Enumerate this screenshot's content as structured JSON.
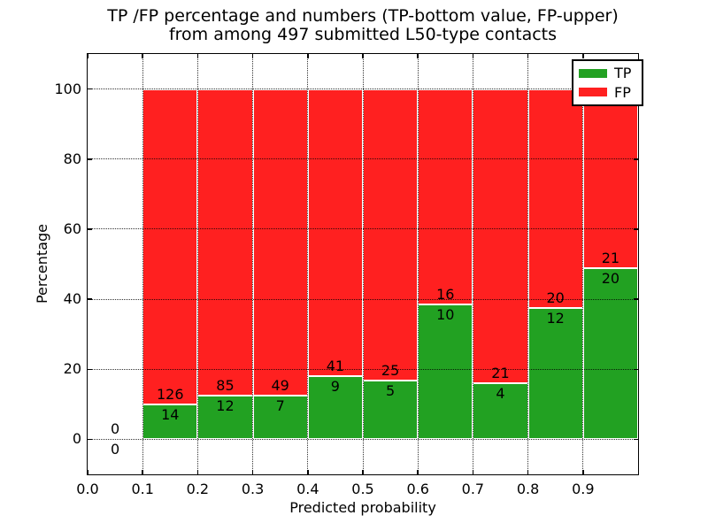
{
  "figure": {
    "background": "#ffffff"
  },
  "chart_data": {
    "type": "bar",
    "stacked": true,
    "title_lines": [
      "TP /FP percentage and numbers (TP-bottom value, FP-upper)",
      "from among 497 submitted L50-type contacts"
    ],
    "xlabel": "Predicted probability",
    "ylabel": "Percentage",
    "xlim": [
      0.0,
      1.0
    ],
    "ylim": [
      -10,
      110
    ],
    "xtick_values": [
      0.0,
      0.1,
      0.2,
      0.3,
      0.4,
      0.5,
      0.6,
      0.7,
      0.8,
      0.9
    ],
    "xtick_labels": [
      "0.0",
      "0.1",
      "0.2",
      "0.3",
      "0.4",
      "0.5",
      "0.6",
      "0.7",
      "0.8",
      "0.9"
    ],
    "ytick_values": [
      0,
      20,
      40,
      60,
      80,
      100
    ],
    "ytick_labels": [
      "0",
      "20",
      "40",
      "60",
      "80",
      "100"
    ],
    "grid": {
      "on": true,
      "style": "dotted"
    },
    "legend": {
      "position": "upper-right",
      "entries": [
        {
          "label": "TP",
          "color": "#22a122"
        },
        {
          "label": "FP",
          "color": "#ff2020"
        }
      ]
    },
    "series_meta": {
      "tp_color": "#22a122",
      "fp_color": "#ff2020",
      "bar_edge_color": "#ffffff"
    },
    "total_submitted": 497,
    "bins": [
      {
        "x_start": 0.0,
        "x_end": 0.1,
        "tp": 0,
        "fp": 0,
        "tp_pct": 0.0,
        "fp_pct": 0.0
      },
      {
        "x_start": 0.1,
        "x_end": 0.2,
        "tp": 14,
        "fp": 126,
        "tp_pct": 10.0,
        "fp_pct": 90.0
      },
      {
        "x_start": 0.2,
        "x_end": 0.3,
        "tp": 12,
        "fp": 85,
        "tp_pct": 12.4,
        "fp_pct": 87.6
      },
      {
        "x_start": 0.3,
        "x_end": 0.4,
        "tp": 7,
        "fp": 49,
        "tp_pct": 12.5,
        "fp_pct": 87.5
      },
      {
        "x_start": 0.4,
        "x_end": 0.5,
        "tp": 9,
        "fp": 41,
        "tp_pct": 18.0,
        "fp_pct": 82.0
      },
      {
        "x_start": 0.5,
        "x_end": 0.6,
        "tp": 5,
        "fp": 25,
        "tp_pct": 16.7,
        "fp_pct": 83.3
      },
      {
        "x_start": 0.6,
        "x_end": 0.7,
        "tp": 10,
        "fp": 16,
        "tp_pct": 38.5,
        "fp_pct": 61.5
      },
      {
        "x_start": 0.7,
        "x_end": 0.8,
        "tp": 4,
        "fp": 21,
        "tp_pct": 16.0,
        "fp_pct": 84.0
      },
      {
        "x_start": 0.8,
        "x_end": 0.9,
        "tp": 12,
        "fp": 20,
        "tp_pct": 37.5,
        "fp_pct": 62.5
      },
      {
        "x_start": 0.9,
        "x_end": 1.0,
        "tp": 20,
        "fp": 21,
        "tp_pct": 48.8,
        "fp_pct": 51.2
      }
    ]
  }
}
